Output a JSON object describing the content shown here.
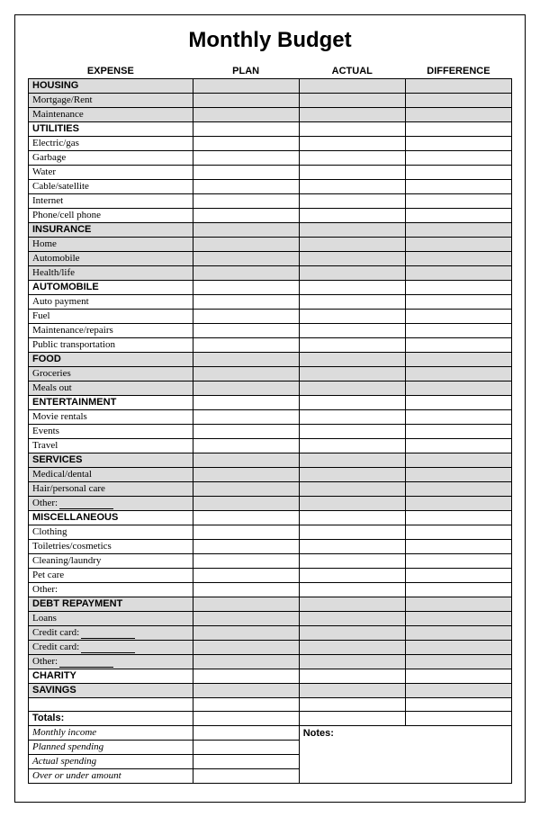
{
  "title": "Monthly Budget",
  "columns": {
    "expense": "EXPENSE",
    "plan": "PLAN",
    "actual": "ACTUAL",
    "difference": "DIFFERENCE"
  },
  "rows": [
    {
      "type": "category",
      "label": "HOUSING",
      "shaded": true
    },
    {
      "type": "item",
      "label": "Mortgage/Rent",
      "shaded": true
    },
    {
      "type": "item",
      "label": "Maintenance",
      "shaded": true
    },
    {
      "type": "category",
      "label": "UTILITIES",
      "shaded": false
    },
    {
      "type": "item",
      "label": "Electric/gas",
      "shaded": false
    },
    {
      "type": "item",
      "label": "Garbage",
      "shaded": false
    },
    {
      "type": "item",
      "label": "Water",
      "shaded": false
    },
    {
      "type": "item",
      "label": "Cable/satellite",
      "shaded": false
    },
    {
      "type": "item",
      "label": "Internet",
      "shaded": false
    },
    {
      "type": "item",
      "label": "Phone/cell phone",
      "shaded": false
    },
    {
      "type": "category",
      "label": "INSURANCE",
      "shaded": true
    },
    {
      "type": "item",
      "label": "Home",
      "shaded": true
    },
    {
      "type": "item",
      "label": "Automobile",
      "shaded": true
    },
    {
      "type": "item",
      "label": "Health/life",
      "shaded": true
    },
    {
      "type": "category",
      "label": "AUTOMOBILE",
      "shaded": false
    },
    {
      "type": "item",
      "label": "Auto payment",
      "shaded": false
    },
    {
      "type": "item",
      "label": "Fuel",
      "shaded": false
    },
    {
      "type": "item",
      "label": "Maintenance/repairs",
      "shaded": false
    },
    {
      "type": "item",
      "label": "Public transportation",
      "shaded": false
    },
    {
      "type": "category",
      "label": "FOOD",
      "shaded": true
    },
    {
      "type": "item",
      "label": "Groceries",
      "shaded": true
    },
    {
      "type": "item",
      "label": "Meals out",
      "shaded": true
    },
    {
      "type": "category",
      "label": "ENTERTAINMENT",
      "shaded": false
    },
    {
      "type": "item",
      "label": "Movie rentals",
      "shaded": false
    },
    {
      "type": "item",
      "label": "Events",
      "shaded": false
    },
    {
      "type": "item",
      "label": "Travel",
      "shaded": false
    },
    {
      "type": "category",
      "label": "SERVICES",
      "shaded": true
    },
    {
      "type": "item",
      "label": "Medical/dental",
      "shaded": true
    },
    {
      "type": "item",
      "label": "Hair/personal care",
      "shaded": true
    },
    {
      "type": "item",
      "label": "Other:",
      "shaded": true,
      "blank": true
    },
    {
      "type": "category",
      "label": "MISCELLANEOUS",
      "shaded": false
    },
    {
      "type": "item",
      "label": "Clothing",
      "shaded": false
    },
    {
      "type": "item",
      "label": "Toiletries/cosmetics",
      "shaded": false
    },
    {
      "type": "item",
      "label": "Cleaning/laundry",
      "shaded": false
    },
    {
      "type": "item",
      "label": "Pet care",
      "shaded": false
    },
    {
      "type": "item",
      "label": "Other:",
      "shaded": false
    },
    {
      "type": "category",
      "label": "DEBT REPAYMENT",
      "shaded": true
    },
    {
      "type": "item",
      "label": "Loans",
      "shaded": true
    },
    {
      "type": "item",
      "label": "Credit card:",
      "shaded": true,
      "blank": true
    },
    {
      "type": "item",
      "label": "Credit card:",
      "shaded": true,
      "blank": true
    },
    {
      "type": "item",
      "label": "Other:",
      "shaded": true,
      "blank": true
    },
    {
      "type": "category",
      "label": "CHARITY",
      "shaded": false
    },
    {
      "type": "category",
      "label": "SAVINGS",
      "shaded": true
    }
  ],
  "totals_label": "Totals:",
  "notes_label": "Notes:",
  "summary": [
    "Monthly income",
    "Planned spending",
    "Actual spending",
    "Over or under amount"
  ],
  "colors": {
    "shaded": "#dcdcdc",
    "border": "#000000",
    "background": "#ffffff"
  }
}
